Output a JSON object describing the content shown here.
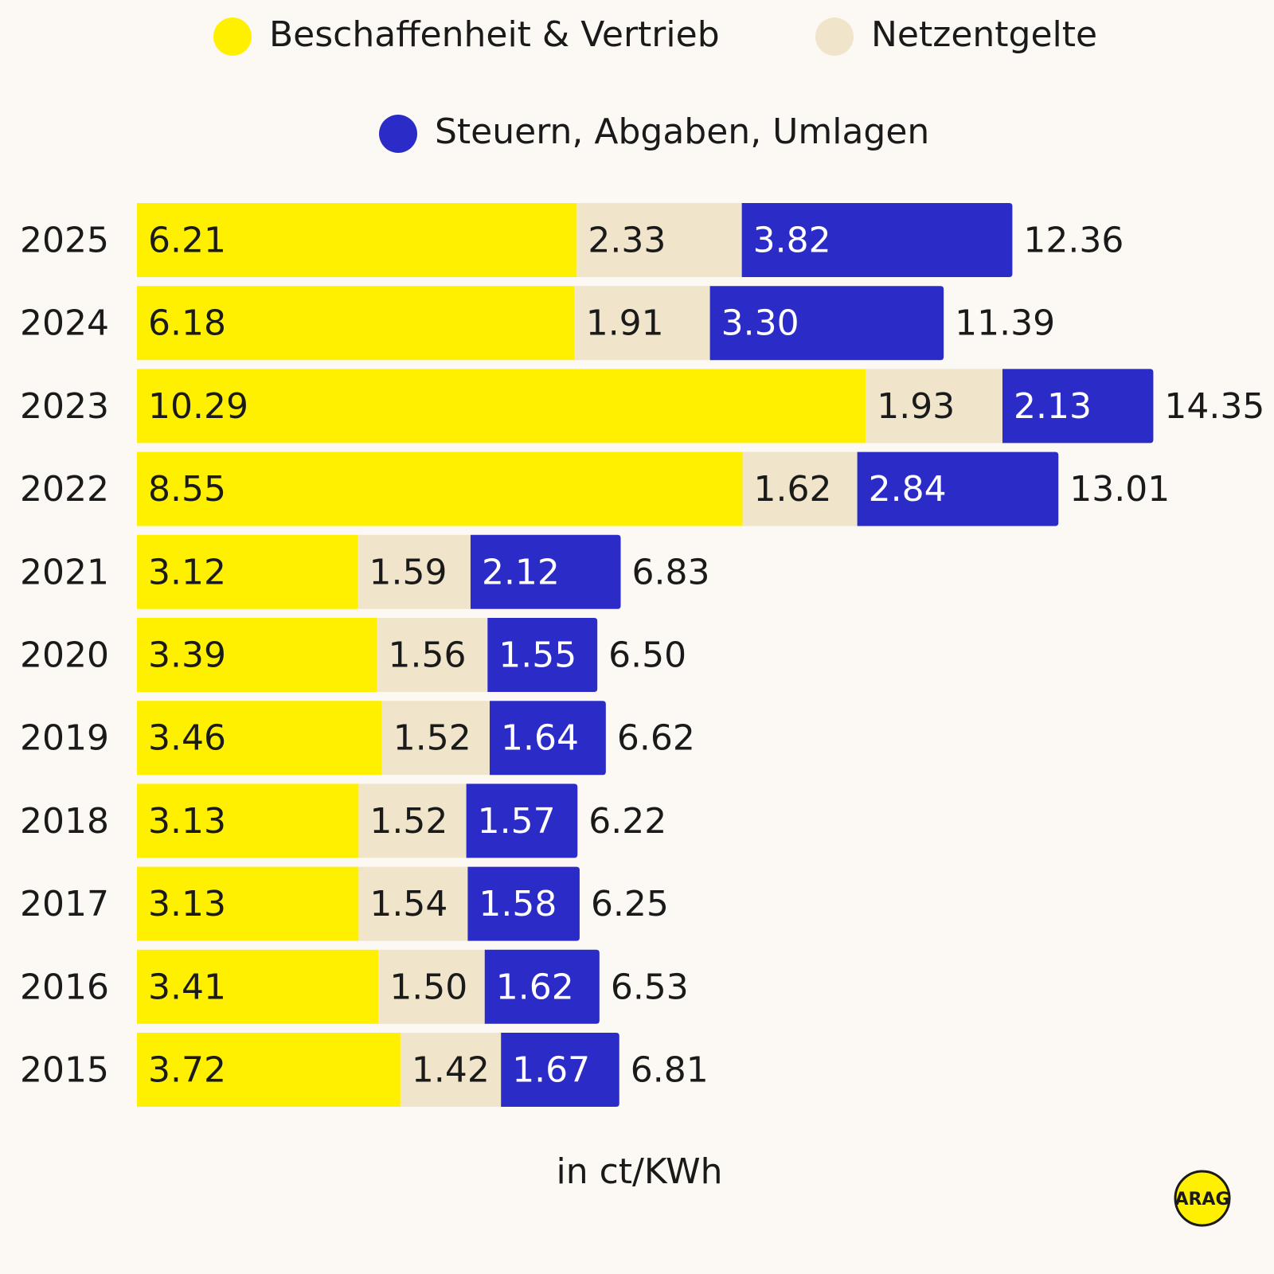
{
  "chart_data": {
    "type": "bar",
    "orientation": "horizontal",
    "stacked": true,
    "categories": [
      "2025",
      "2024",
      "2023",
      "2022",
      "2021",
      "2020",
      "2019",
      "2018",
      "2017",
      "2016",
      "2015"
    ],
    "series": [
      {
        "name": "Beschaffenheit & Vertrieb",
        "color": "#fff000",
        "label_color": "#1a1a1a",
        "values": [
          6.21,
          6.18,
          10.29,
          8.55,
          3.12,
          3.39,
          3.46,
          3.13,
          3.13,
          3.41,
          3.72
        ]
      },
      {
        "name": "Netzentgelte",
        "color": "#f0e4cb",
        "label_color": "#1a1a1a",
        "values": [
          2.33,
          1.91,
          1.93,
          1.62,
          1.59,
          1.56,
          1.52,
          1.52,
          1.54,
          1.5,
          1.42
        ]
      },
      {
        "name": "Steuern, Abgaben, Umlagen",
        "color": "#2b2bc8",
        "label_color": "#ffffff",
        "values": [
          3.82,
          3.3,
          2.13,
          2.84,
          2.12,
          1.55,
          1.64,
          1.57,
          1.58,
          1.62,
          1.67
        ]
      }
    ],
    "totals": [
      "12.36",
      "11.39",
      "14.35",
      "13.01",
      "6.83",
      "6.50",
      "6.62",
      "6.22",
      "6.25",
      "6.53",
      "6.81"
    ],
    "legend_position": "top",
    "unit_label": "in ct/KWh"
  },
  "logo": {
    "text": "ARAG",
    "color": "#fff000"
  }
}
